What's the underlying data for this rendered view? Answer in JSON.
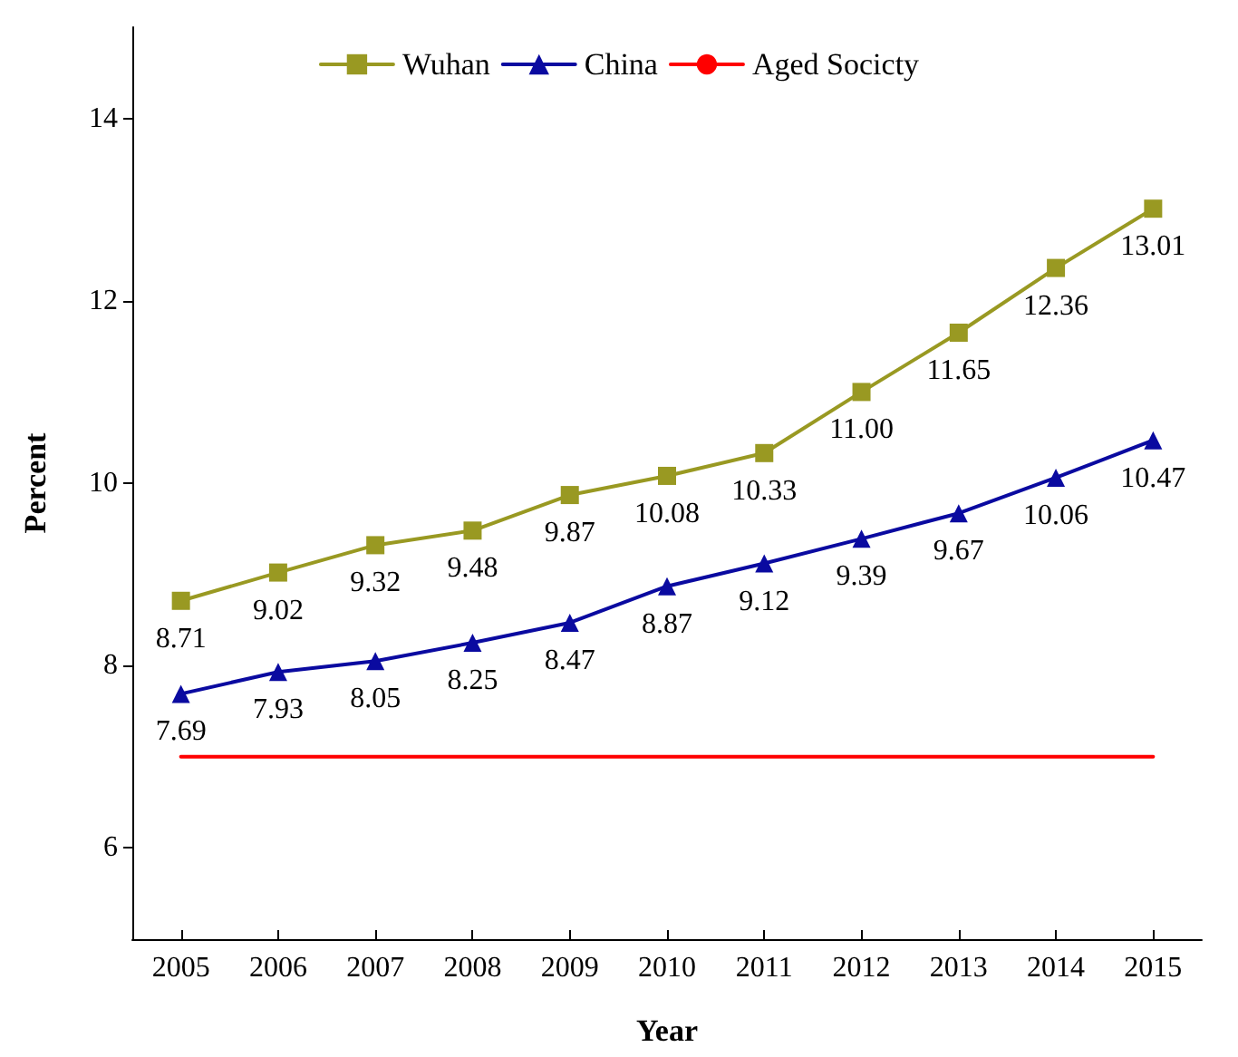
{
  "chart_data": {
    "type": "line",
    "xlabel": "Year",
    "ylabel": "Percent",
    "categories": [
      "2005",
      "2006",
      "2007",
      "2008",
      "2009",
      "2010",
      "2011",
      "2012",
      "2013",
      "2014",
      "2015"
    ],
    "series": [
      {
        "name": "Wuhan",
        "color": "#999922",
        "marker": "square",
        "values": [
          8.71,
          9.02,
          9.32,
          9.48,
          9.87,
          10.08,
          10.33,
          11.0,
          11.65,
          12.36,
          13.01
        ],
        "value_labels": [
          "8.71",
          "9.02",
          "9.32",
          "9.48",
          "9.87",
          "10.08",
          "10.33",
          "11.00",
          "11.65",
          "12.36",
          "13.01"
        ]
      },
      {
        "name": "China",
        "color": "#0a0aa0",
        "marker": "triangle",
        "values": [
          7.69,
          7.93,
          8.05,
          8.25,
          8.47,
          8.87,
          9.12,
          9.39,
          9.67,
          10.06,
          10.47
        ],
        "value_labels": [
          "7.69",
          "7.93",
          "8.05",
          "8.25",
          "8.47",
          "8.87",
          "9.12",
          "9.39",
          "9.67",
          "10.06",
          "10.47"
        ]
      },
      {
        "name": "Aged Socicty",
        "color": "#ff0000",
        "marker": "none",
        "values": [
          7,
          7,
          7,
          7,
          7,
          7,
          7,
          7,
          7,
          7,
          7
        ]
      }
    ],
    "ylim": [
      5,
      15
    ],
    "yticks": [
      6,
      8,
      10,
      12,
      14
    ],
    "grid": false,
    "legend": "top",
    "line_style": "solid"
  }
}
